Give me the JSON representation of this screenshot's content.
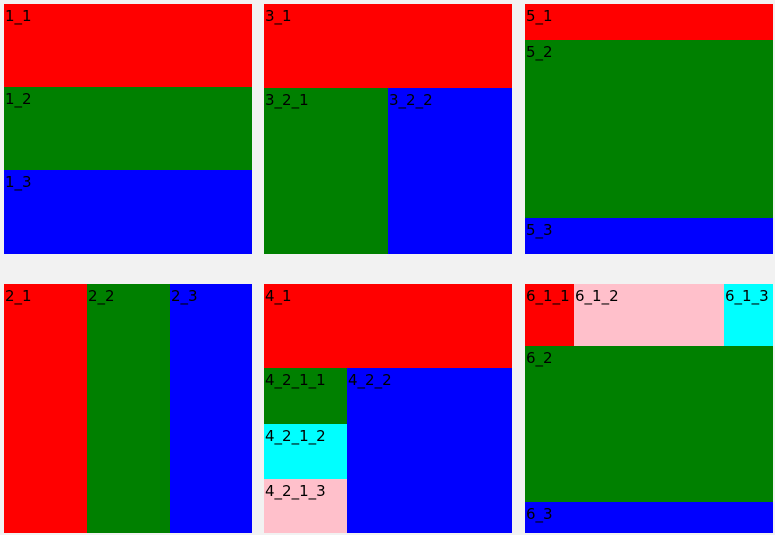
{
  "colors": {
    "red": "#ff0000",
    "green": "#008000",
    "blue": "#0000ff",
    "cyan": "#00ffff",
    "pink": "#ffc0cb",
    "background": "#f2f2f2"
  },
  "panels": {
    "p1": {
      "c1": "1_1",
      "c2": "1_2",
      "c3": "1_3"
    },
    "p2": {
      "c1": "2_1",
      "c2": "2_2",
      "c3": "2_3"
    },
    "p3": {
      "c1": "3_1",
      "c2_1": "3_2_1",
      "c2_2": "3_2_2"
    },
    "p4": {
      "c1": "4_1",
      "c2_1_1": "4_2_1_1",
      "c2_1_2": "4_2_1_2",
      "c2_1_3": "4_2_1_3",
      "c2_2": "4_2_2"
    },
    "p5": {
      "c1": "5_1",
      "c2": "5_2",
      "c3": "5_3"
    },
    "p6": {
      "c1_1": "6_1_1",
      "c1_2": "6_1_2",
      "c1_3": "6_1_3",
      "c2": "6_2",
      "c3": "6_3"
    }
  }
}
